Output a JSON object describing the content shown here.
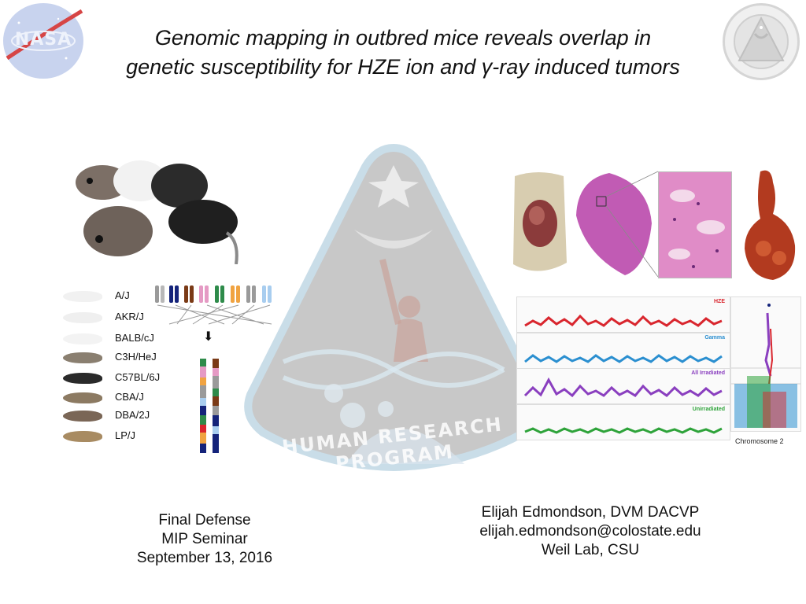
{
  "slide": {
    "title_lines": [
      "Genomic mapping in outbred mice reveals overlap in",
      "genetic susceptibility for HZE ion and γ-ray induced tumors"
    ],
    "logos": {
      "left": "NASA",
      "right_icon": "human-research-program-seal-icon"
    }
  },
  "strains": [
    "A/J",
    "AKR/J",
    "BALB/cJ",
    "C3H/HeJ",
    "C57BL/6J",
    "CBA/J",
    "DBA/2J",
    "LP/J"
  ],
  "manhattan_panels": [
    "HZE",
    "Gamma",
    "All Irradiated",
    "Unirradiated"
  ],
  "chromosome_label": "Chromosome 2",
  "footer_left": [
    "Final Defense",
    "MIP Seminar",
    "September 13, 2016"
  ],
  "footer_right": [
    "Elijah Edmondson, DVM DACVP",
    "elijah.edmondson@colostate.edu",
    "Weil Lab, CSU"
  ],
  "colors": {
    "hze": "#d9262e",
    "gamma": "#2b8fd0",
    "all_irradiated": "#8a3fbf",
    "unirradiated": "#2ea33a"
  }
}
